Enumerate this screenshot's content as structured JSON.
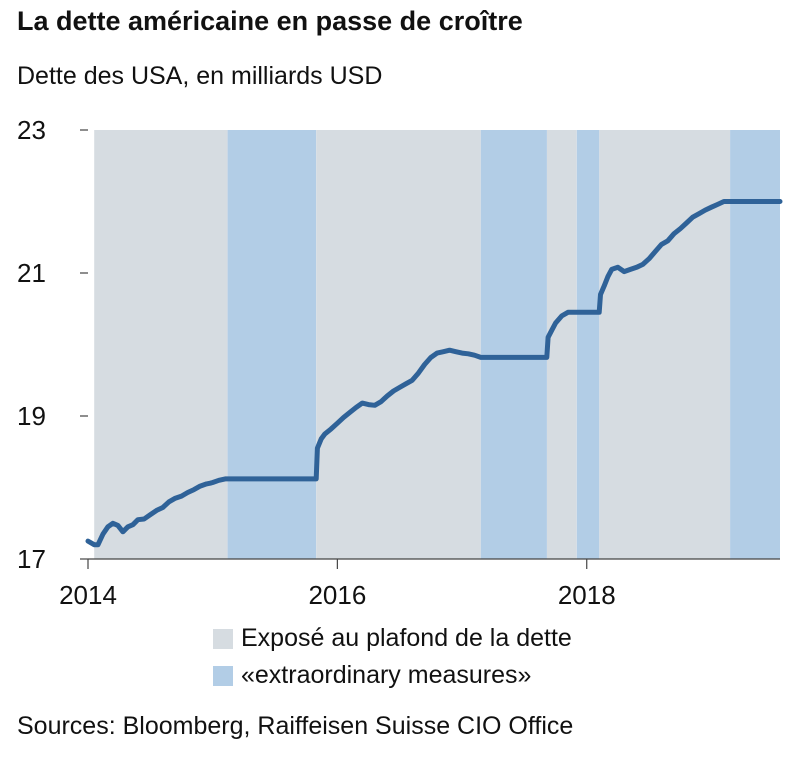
{
  "title": "La dette américaine en passe de croître",
  "subtitle": "Dette des USA, en milliards USD",
  "source": "Sources: Bloomberg, Raiffeisen Suisse CIO Office",
  "colors": {
    "ceiling_exposed": "#d6dce1",
    "extraordinary": "#b2cde6",
    "line": "#2f6298"
  },
  "legend": [
    {
      "label": "Exposé au plafond de la dette",
      "color": "#d6dce1"
    },
    {
      "label": "«extraordinary measures»",
      "color": "#b2cde6"
    }
  ],
  "chart_data": {
    "type": "line",
    "title": "La dette américaine en passe de croître",
    "ylabel": "Dette des USA, en milliards USD",
    "xlabel": "",
    "xlim": [
      2014.0,
      2019.55
    ],
    "ylim": [
      17,
      23
    ],
    "x_ticks": [
      2014,
      2016,
      2018
    ],
    "y_ticks": [
      17,
      19,
      21,
      23
    ],
    "grid": false,
    "legend_position": "bottom",
    "shaded_regions": [
      {
        "series": "Exposé au plafond de la dette",
        "ranges": [
          [
            2014.05,
            2015.12
          ],
          [
            2015.83,
            2017.15
          ],
          [
            2017.68,
            2017.92
          ],
          [
            2018.1,
            2019.15
          ]
        ]
      },
      {
        "series": "«extraordinary measures»",
        "ranges": [
          [
            2015.12,
            2015.83
          ],
          [
            2017.15,
            2017.68
          ],
          [
            2017.92,
            2018.1
          ],
          [
            2019.15,
            2019.55
          ]
        ]
      }
    ],
    "series": [
      {
        "name": "",
        "x": [
          2014.0,
          2014.05,
          2014.08,
          2014.12,
          2014.16,
          2014.2,
          2014.24,
          2014.28,
          2014.32,
          2014.36,
          2014.4,
          2014.45,
          2014.5,
          2014.55,
          2014.6,
          2014.65,
          2014.7,
          2014.75,
          2014.8,
          2014.85,
          2014.9,
          2014.95,
          2014.98,
          2015.0,
          2015.05,
          2015.1,
          2015.12,
          2015.83,
          2015.84,
          2015.87,
          2015.9,
          2015.95,
          2016.0,
          2016.05,
          2016.1,
          2016.15,
          2016.2,
          2016.25,
          2016.3,
          2016.35,
          2016.4,
          2016.45,
          2016.5,
          2016.55,
          2016.6,
          2016.65,
          2016.7,
          2016.75,
          2016.8,
          2016.85,
          2016.9,
          2016.95,
          2017.0,
          2017.05,
          2017.1,
          2017.15,
          2017.68,
          2017.69,
          2017.72,
          2017.75,
          2017.8,
          2017.85,
          2017.92,
          2018.1,
          2018.11,
          2018.14,
          2018.17,
          2018.2,
          2018.25,
          2018.3,
          2018.35,
          2018.4,
          2018.45,
          2018.5,
          2018.55,
          2018.6,
          2018.65,
          2018.7,
          2018.75,
          2018.8,
          2018.85,
          2018.9,
          2018.95,
          2019.0,
          2019.05,
          2019.1,
          2019.15,
          2019.55
        ],
        "values": [
          17.25,
          17.2,
          17.2,
          17.35,
          17.45,
          17.5,
          17.47,
          17.38,
          17.45,
          17.48,
          17.55,
          17.56,
          17.62,
          17.68,
          17.72,
          17.8,
          17.85,
          17.88,
          17.93,
          17.97,
          18.02,
          18.05,
          18.06,
          18.07,
          18.1,
          18.12,
          18.12,
          18.12,
          18.55,
          18.68,
          18.75,
          18.82,
          18.9,
          18.98,
          19.05,
          19.12,
          19.18,
          19.16,
          19.15,
          19.2,
          19.28,
          19.35,
          19.4,
          19.45,
          19.5,
          19.6,
          19.72,
          19.82,
          19.88,
          19.9,
          19.92,
          19.9,
          19.88,
          19.87,
          19.85,
          19.82,
          19.82,
          20.1,
          20.2,
          20.3,
          20.4,
          20.45,
          20.45,
          20.45,
          20.7,
          20.82,
          20.95,
          21.05,
          21.08,
          21.02,
          21.05,
          21.08,
          21.12,
          21.2,
          21.3,
          21.4,
          21.45,
          21.55,
          21.62,
          21.7,
          21.78,
          21.83,
          21.88,
          21.92,
          21.96,
          22.0,
          22.0,
          22.0
        ]
      }
    ]
  }
}
